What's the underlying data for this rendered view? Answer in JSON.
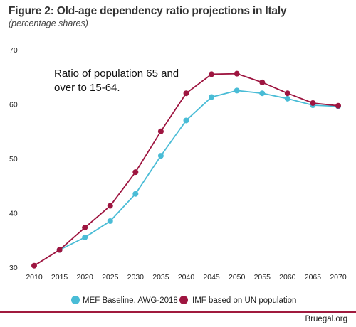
{
  "header": {
    "title": "Figure 2:  Old-age dependency ratio projections in Italy",
    "subtitle": "(percentage shares)"
  },
  "footer": {
    "source": "Bruegal.org"
  },
  "colors": {
    "mef": "#49bcd6",
    "imf": "#9e1540",
    "rule": "#a01a3e"
  },
  "chart_data": {
    "type": "line",
    "annotation": "Ratio of population 65 and over to 15-64.",
    "x": [
      2010,
      2015,
      2020,
      2025,
      2030,
      2035,
      2040,
      2045,
      2050,
      2055,
      2060,
      2065,
      2070
    ],
    "ylim": [
      30,
      70
    ],
    "yticks": [
      30,
      40,
      50,
      60,
      70
    ],
    "grid": false,
    "legend_position": "bottom",
    "series": [
      {
        "name": "MEF Baseline, AWG-2018",
        "color": "#49bcd6",
        "values": [
          null,
          33.2,
          35.5,
          38.5,
          43.5,
          50.5,
          57.0,
          61.3,
          62.5,
          62.0,
          61.0,
          59.8,
          59.6
        ]
      },
      {
        "name": "IMF based on UN population",
        "color": "#9e1540",
        "values": [
          30.3,
          33.2,
          37.3,
          41.3,
          47.5,
          55.0,
          62.0,
          65.5,
          65.6,
          64.0,
          62.0,
          60.2,
          59.7
        ]
      }
    ]
  }
}
